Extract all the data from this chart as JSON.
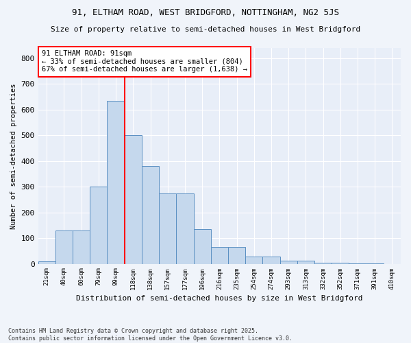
{
  "title1": "91, ELTHAM ROAD, WEST BRIDGFORD, NOTTINGHAM, NG2 5JS",
  "title2": "Size of property relative to semi-detached houses in West Bridgford",
  "xlabel": "Distribution of semi-detached houses by size in West Bridgford",
  "ylabel": "Number of semi-detached properties",
  "footnote": "Contains HM Land Registry data © Crown copyright and database right 2025.\nContains public sector information licensed under the Open Government Licence v3.0.",
  "categories": [
    "21sqm",
    "40sqm",
    "60sqm",
    "79sqm",
    "99sqm",
    "118sqm",
    "138sqm",
    "157sqm",
    "177sqm",
    "196sqm",
    "216sqm",
    "235sqm",
    "254sqm",
    "274sqm",
    "293sqm",
    "313sqm",
    "332sqm",
    "352sqm",
    "371sqm",
    "391sqm",
    "410sqm"
  ],
  "values": [
    10,
    130,
    130,
    300,
    635,
    500,
    380,
    275,
    275,
    135,
    65,
    65,
    28,
    28,
    13,
    13,
    5,
    5,
    2,
    2,
    0
  ],
  "bar_color": "#c5d8ed",
  "bar_edge_color": "#5a8fc2",
  "vline_index": 4,
  "vline_color": "red",
  "annotation_text": "91 ELTHAM ROAD: 91sqm\n← 33% of semi-detached houses are smaller (804)\n67% of semi-detached houses are larger (1,638) →",
  "annotation_box_color": "white",
  "annotation_box_edge_color": "red",
  "bg_color": "#f0f4fa",
  "plot_bg_color": "#e8eef8",
  "grid_color": "white",
  "ylim": [
    0,
    840
  ],
  "yticks": [
    0,
    100,
    200,
    300,
    400,
    500,
    600,
    700,
    800
  ]
}
